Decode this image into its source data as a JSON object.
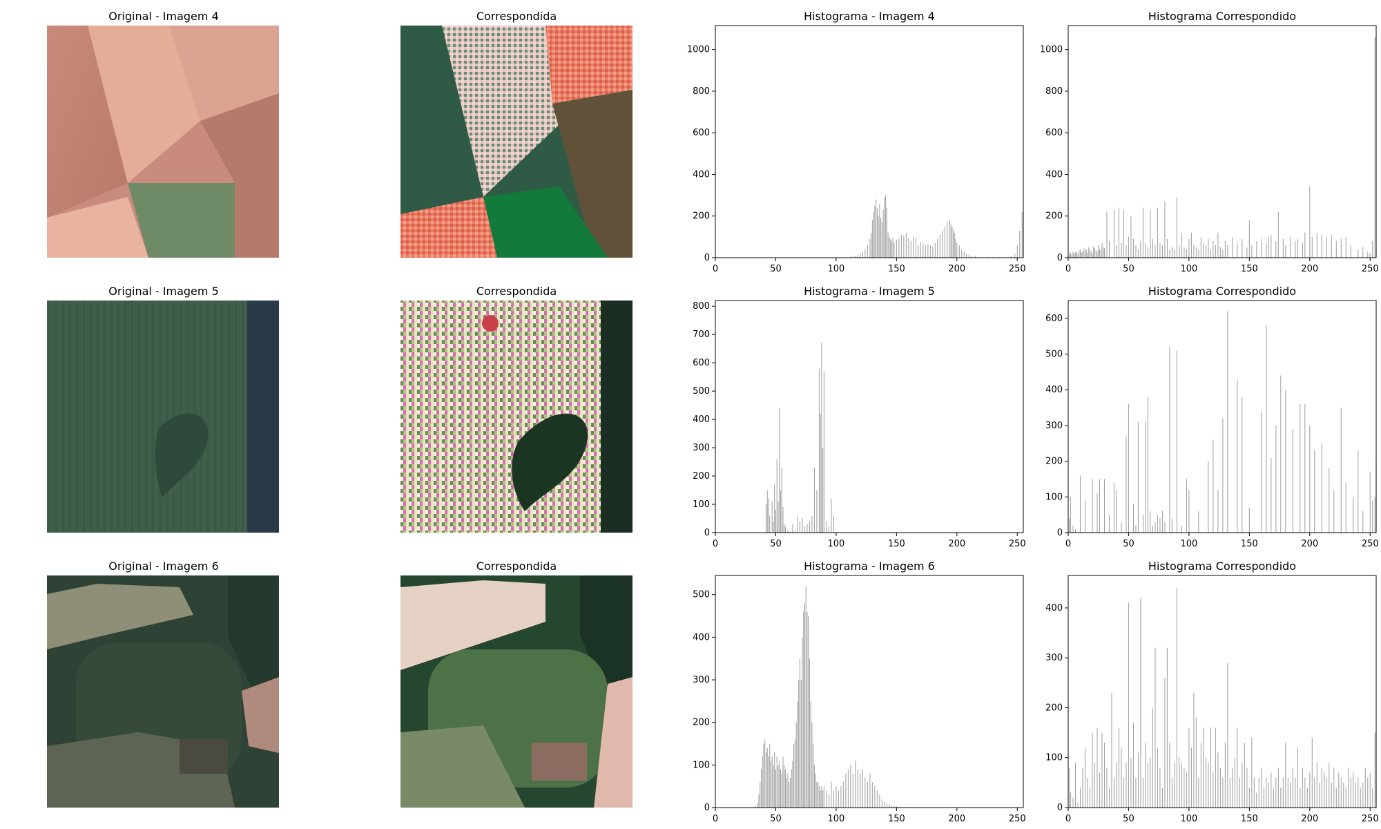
{
  "figure": {
    "rows": [
      {
        "original": {
          "title": "Original - Imagem 4",
          "image_description_colors": [
            "#c8897a",
            "#e6b4a0",
            "#b57a6c",
            "#6f8a64"
          ]
        },
        "matched": {
          "title": "Correspondida",
          "image_description_colors": [
            "#2f5a45",
            "#e8c6c0",
            "#ec7b62",
            "#167a3c",
            "#5a4a30"
          ]
        }
      },
      {
        "original": {
          "title": "Original - Imagem 5",
          "image_description_colors": [
            "#3f5f4c",
            "#2f4a3e",
            "#27364a"
          ]
        },
        "matched": {
          "title": "Correspondida",
          "image_description_colors": [
            "#e0dcb8",
            "#6e8a58",
            "#1a3a24",
            "#d05ab0"
          ]
        }
      },
      {
        "original": {
          "title": "Original - Imagem 6",
          "image_description_colors": [
            "#8f8f78",
            "#2d4135",
            "#6b7262",
            "#b08a7c"
          ]
        },
        "matched": {
          "title": "Correspondida",
          "image_description_colors": [
            "#e8dcd0",
            "#234a2e",
            "#5a7a52",
            "#c09080"
          ]
        }
      }
    ]
  },
  "chart_data": [
    {
      "type": "bar",
      "title": "Histograma - Imagem 4",
      "xlim": [
        0,
        255
      ],
      "ylim": [
        0,
        1115
      ],
      "xticks": [
        0,
        50,
        100,
        150,
        200,
        250
      ],
      "yticks": [
        0,
        200,
        400,
        600,
        800,
        1000
      ],
      "bar_color": "#a0a0a0",
      "x": [
        112,
        114,
        116,
        118,
        120,
        122,
        124,
        126,
        128,
        129,
        130,
        131,
        132,
        133,
        134,
        135,
        136,
        137,
        138,
        139,
        140,
        141,
        142,
        143,
        144,
        145,
        146,
        147,
        148,
        150,
        152,
        154,
        156,
        158,
        160,
        162,
        164,
        166,
        168,
        170,
        172,
        174,
        176,
        178,
        180,
        182,
        184,
        186,
        188,
        190,
        192,
        194,
        195,
        196,
        197,
        198,
        199,
        200,
        202,
        204,
        206,
        208,
        210,
        212,
        215,
        220,
        225,
        230,
        235,
        240,
        245,
        248,
        250,
        252,
        254,
        255
      ],
      "y": [
        5,
        8,
        10,
        15,
        20,
        30,
        40,
        60,
        90,
        120,
        180,
        220,
        250,
        280,
        240,
        200,
        260,
        190,
        170,
        230,
        290,
        300,
        240,
        120,
        100,
        90,
        80,
        95,
        70,
        85,
        90,
        110,
        105,
        120,
        95,
        80,
        100,
        90,
        60,
        75,
        70,
        60,
        65,
        60,
        55,
        70,
        90,
        110,
        130,
        150,
        170,
        180,
        160,
        150,
        135,
        120,
        90,
        70,
        60,
        40,
        30,
        20,
        15,
        10,
        8,
        5,
        5,
        4,
        3,
        5,
        8,
        20,
        60,
        130,
        220,
        350
      ]
    },
    {
      "type": "bar",
      "title": "Histograma Correspondido",
      "xlim": [
        0,
        255
      ],
      "ylim": [
        0,
        1115
      ],
      "xticks": [
        0,
        50,
        100,
        150,
        200,
        250
      ],
      "yticks": [
        0,
        200,
        400,
        600,
        800,
        1000
      ],
      "bar_color": "#a0a0a0",
      "x": [
        1,
        2,
        3,
        4,
        5,
        6,
        7,
        8,
        9,
        10,
        11,
        12,
        13,
        14,
        15,
        16,
        17,
        18,
        19,
        20,
        21,
        22,
        23,
        24,
        25,
        26,
        27,
        28,
        29,
        30,
        32,
        34,
        38,
        40,
        42,
        44,
        46,
        48,
        50,
        52,
        54,
        56,
        58,
        60,
        62,
        64,
        66,
        68,
        70,
        72,
        74,
        76,
        78,
        80,
        82,
        84,
        86,
        88,
        90,
        92,
        94,
        96,
        98,
        100,
        102,
        104,
        106,
        108,
        110,
        112,
        114,
        116,
        118,
        120,
        122,
        124,
        126,
        128,
        130,
        132,
        136,
        140,
        144,
        148,
        150,
        152,
        156,
        160,
        164,
        166,
        168,
        172,
        174,
        178,
        180,
        184,
        188,
        190,
        194,
        196,
        200,
        202,
        206,
        210,
        214,
        218,
        222,
        226,
        230,
        234,
        240,
        244,
        248,
        250,
        252,
        254,
        255
      ],
      "y": [
        20,
        25,
        15,
        30,
        20,
        25,
        30,
        18,
        35,
        40,
        25,
        30,
        45,
        35,
        40,
        25,
        50,
        40,
        30,
        20,
        55,
        45,
        35,
        30,
        60,
        40,
        35,
        70,
        50,
        45,
        220,
        80,
        230,
        60,
        240,
        70,
        230,
        60,
        100,
        200,
        90,
        60,
        40,
        80,
        240,
        70,
        50,
        230,
        90,
        60,
        240,
        70,
        60,
        270,
        90,
        40,
        50,
        40,
        290,
        60,
        120,
        50,
        40,
        90,
        120,
        60,
        50,
        40,
        100,
        70,
        60,
        90,
        40,
        80,
        60,
        120,
        50,
        40,
        80,
        60,
        100,
        70,
        90,
        50,
        180,
        60,
        80,
        90,
        70,
        100,
        110,
        80,
        220,
        90,
        60,
        100,
        80,
        90,
        70,
        120,
        340,
        100,
        120,
        110,
        100,
        110,
        80,
        90,
        100,
        60,
        40,
        50,
        30,
        20,
        80,
        1060,
        60
      ]
    },
    {
      "type": "bar",
      "title": "Histograma - Imagem 5",
      "xlim": [
        0,
        255
      ],
      "ylim": [
        0,
        820
      ],
      "xticks": [
        0,
        50,
        100,
        150,
        200,
        250
      ],
      "yticks": [
        0,
        100,
        200,
        300,
        400,
        500,
        600,
        700,
        800
      ],
      "bar_color": "#a0a0a0",
      "x": [
        42,
        43,
        44,
        45,
        47,
        48,
        49,
        50,
        51,
        52,
        53,
        54,
        55,
        56,
        57,
        58,
        60,
        62,
        64,
        66,
        68,
        70,
        72,
        74,
        76,
        78,
        80,
        82,
        84,
        86,
        87,
        88,
        89,
        90,
        92,
        94,
        96,
        98
      ],
      "y": [
        100,
        150,
        120,
        60,
        110,
        40,
        170,
        80,
        260,
        110,
        440,
        150,
        230,
        90,
        30,
        20,
        10,
        5,
        30,
        10,
        60,
        40,
        50,
        20,
        30,
        40,
        60,
        230,
        150,
        580,
        420,
        670,
        300,
        570,
        40,
        20,
        120,
        60
      ]
    },
    {
      "type": "bar",
      "title": "Histograma Correspondido",
      "xlim": [
        0,
        255
      ],
      "ylim": [
        0,
        650
      ],
      "xticks": [
        0,
        50,
        100,
        150,
        200,
        250
      ],
      "yticks": [
        0,
        100,
        200,
        300,
        400,
        500,
        600
      ],
      "bar_color": "#a0a0a0",
      "x": [
        1,
        2,
        4,
        6,
        10,
        14,
        20,
        24,
        26,
        30,
        34,
        38,
        40,
        44,
        48,
        50,
        54,
        56,
        58,
        62,
        64,
        66,
        68,
        70,
        72,
        74,
        76,
        78,
        80,
        84,
        86,
        90,
        94,
        98,
        100,
        108,
        116,
        120,
        124,
        128,
        132,
        140,
        144,
        150,
        160,
        164,
        168,
        172,
        176,
        180,
        186,
        192,
        196,
        200,
        204,
        210,
        216,
        220,
        226,
        230,
        236,
        240,
        244,
        250,
        252,
        254,
        255
      ],
      "y": [
        40,
        100,
        20,
        10,
        160,
        90,
        150,
        110,
        150,
        150,
        50,
        140,
        120,
        30,
        270,
        360,
        80,
        20,
        310,
        50,
        310,
        380,
        60,
        20,
        30,
        50,
        40,
        60,
        30,
        520,
        40,
        510,
        20,
        150,
        120,
        60,
        200,
        260,
        120,
        320,
        620,
        430,
        380,
        70,
        340,
        580,
        210,
        300,
        440,
        400,
        290,
        360,
        360,
        300,
        230,
        250,
        180,
        120,
        350,
        140,
        100,
        230,
        60,
        170,
        90,
        100,
        210
      ]
    },
    {
      "type": "bar",
      "title": "Histograma - Imagem 6",
      "xlim": [
        0,
        255
      ],
      "ylim": [
        0,
        545
      ],
      "xticks": [
        0,
        50,
        100,
        150,
        200,
        250
      ],
      "yticks": [
        0,
        100,
        200,
        300,
        400,
        500
      ],
      "bar_color": "#a0a0a0",
      "x": [
        33,
        35,
        36,
        37,
        38,
        39,
        40,
        41,
        42,
        43,
        44,
        45,
        46,
        47,
        48,
        49,
        50,
        51,
        52,
        53,
        54,
        55,
        56,
        57,
        58,
        59,
        60,
        61,
        62,
        63,
        64,
        65,
        66,
        67,
        68,
        69,
        70,
        71,
        72,
        73,
        74,
        75,
        76,
        77,
        78,
        79,
        80,
        81,
        82,
        83,
        84,
        85,
        86,
        87,
        88,
        89,
        90,
        92,
        94,
        96,
        98,
        100,
        102,
        104,
        106,
        108,
        110,
        112,
        114,
        116,
        118,
        120,
        122,
        124,
        126,
        128,
        130,
        132,
        134,
        136,
        138,
        140,
        142,
        144,
        146,
        148,
        150,
        152,
        155,
        160
      ],
      "y": [
        5,
        10,
        30,
        60,
        90,
        120,
        150,
        160,
        130,
        140,
        120,
        150,
        110,
        120,
        100,
        130,
        90,
        120,
        100,
        110,
        90,
        80,
        120,
        100,
        90,
        70,
        80,
        60,
        70,
        90,
        110,
        150,
        160,
        200,
        250,
        300,
        350,
        300,
        400,
        460,
        480,
        520,
        460,
        450,
        350,
        250,
        200,
        150,
        100,
        80,
        60,
        60,
        50,
        40,
        50,
        40,
        50,
        40,
        30,
        60,
        40,
        50,
        40,
        50,
        60,
        80,
        90,
        100,
        80,
        110,
        90,
        80,
        90,
        70,
        60,
        80,
        60,
        50,
        40,
        30,
        20,
        15,
        10,
        8,
        5,
        5,
        3,
        2,
        1,
        1
      ]
    },
    {
      "type": "bar",
      "title": "Histograma Correspondido",
      "xlim": [
        0,
        255
      ],
      "ylim": [
        0,
        465
      ],
      "xticks": [
        0,
        50,
        100,
        150,
        200,
        250
      ],
      "yticks": [
        0,
        100,
        200,
        300,
        400
      ],
      "bar_color": "#a0a0a0",
      "x": [
        1,
        2,
        4,
        6,
        8,
        10,
        12,
        14,
        16,
        18,
        20,
        22,
        24,
        26,
        28,
        30,
        32,
        34,
        36,
        38,
        40,
        42,
        44,
        46,
        48,
        50,
        52,
        54,
        56,
        58,
        60,
        62,
        64,
        66,
        68,
        70,
        72,
        74,
        76,
        78,
        80,
        82,
        84,
        86,
        88,
        90,
        92,
        94,
        96,
        98,
        100,
        102,
        104,
        106,
        108,
        110,
        112,
        114,
        116,
        118,
        120,
        122,
        124,
        126,
        128,
        130,
        132,
        134,
        136,
        138,
        140,
        142,
        144,
        146,
        148,
        150,
        152,
        154,
        156,
        158,
        160,
        162,
        164,
        166,
        168,
        170,
        172,
        174,
        176,
        178,
        180,
        182,
        184,
        186,
        188,
        190,
        192,
        194,
        196,
        198,
        200,
        202,
        204,
        206,
        208,
        210,
        212,
        214,
        216,
        218,
        220,
        222,
        224,
        226,
        228,
        230,
        232,
        234,
        236,
        238,
        240,
        242,
        244,
        246,
        248,
        250,
        252,
        254,
        255
      ],
      "y": [
        80,
        30,
        20,
        90,
        10,
        40,
        80,
        120,
        60,
        40,
        150,
        90,
        160,
        70,
        150,
        130,
        80,
        40,
        230,
        60,
        90,
        160,
        120,
        60,
        90,
        410,
        100,
        170,
        60,
        110,
        420,
        60,
        130,
        90,
        100,
        200,
        320,
        120,
        80,
        40,
        260,
        320,
        130,
        60,
        90,
        440,
        100,
        90,
        80,
        70,
        160,
        120,
        230,
        180,
        60,
        130,
        160,
        100,
        90,
        160,
        70,
        160,
        110,
        80,
        60,
        130,
        290,
        60,
        80,
        100,
        160,
        60,
        90,
        130,
        80,
        40,
        140,
        60,
        30,
        60,
        80,
        40,
        60,
        50,
        70,
        40,
        60,
        80,
        40,
        60,
        130,
        60,
        50,
        80,
        60,
        120,
        40,
        80,
        60,
        40,
        70,
        140,
        60,
        90,
        50,
        80,
        70,
        60,
        90,
        50,
        80,
        40,
        70,
        60,
        50,
        40,
        80,
        60,
        70,
        50,
        60,
        40,
        50,
        80,
        60,
        70,
        40,
        150,
        60
      ]
    }
  ]
}
